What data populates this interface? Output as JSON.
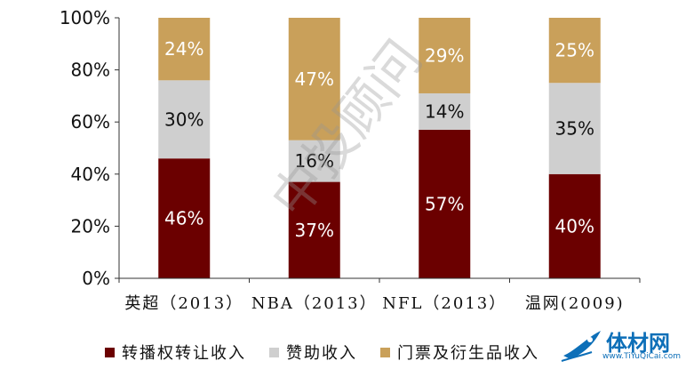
{
  "chart_data": {
    "type": "bar",
    "stacked": true,
    "categories": [
      "英超（2013）",
      "NBA（2013）",
      "NFL（2013）",
      "温网(2009)"
    ],
    "series": [
      {
        "name": "转播权转让收入",
        "color": "#6b0000",
        "label_color": "#ffffff",
        "values": [
          46,
          37,
          57,
          40
        ]
      },
      {
        "name": "赞助收入",
        "color": "#cfcfcf",
        "label_color": "#111111",
        "values": [
          30,
          16,
          14,
          35
        ]
      },
      {
        "name": "门票及衍生品收入",
        "color": "#c9a05a",
        "label_color": "#ffffff",
        "values": [
          24,
          47,
          29,
          25
        ]
      }
    ],
    "ylim": [
      0,
      100
    ],
    "yticks": [
      "0%",
      "20%",
      "40%",
      "60%",
      "80%",
      "100%"
    ],
    "legend_position": "bottom",
    "grid": false
  },
  "watermark": "中投顾问",
  "logo": {
    "text": "体材网",
    "sub": "www.TiYuQiCai.com"
  }
}
